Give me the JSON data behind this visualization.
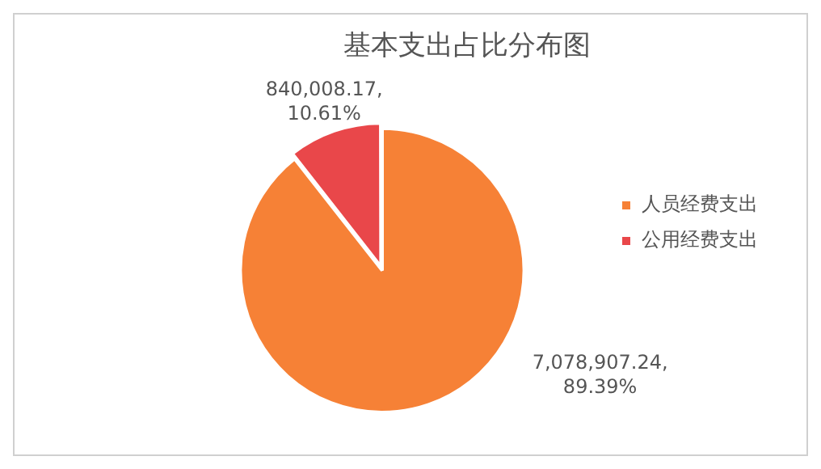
{
  "chart_data": {
    "type": "pie",
    "title": "基本支出占比分布图",
    "categories": [
      "人员经费支出",
      "公用经费支出"
    ],
    "values": [
      7078907.24,
      840008.17
    ],
    "colors": [
      "#f68136",
      "#e9474a"
    ],
    "value_labels": [
      "7,078,907.24,\n89.39%",
      "840,008.17,\n10.61%"
    ],
    "legend": "right"
  }
}
